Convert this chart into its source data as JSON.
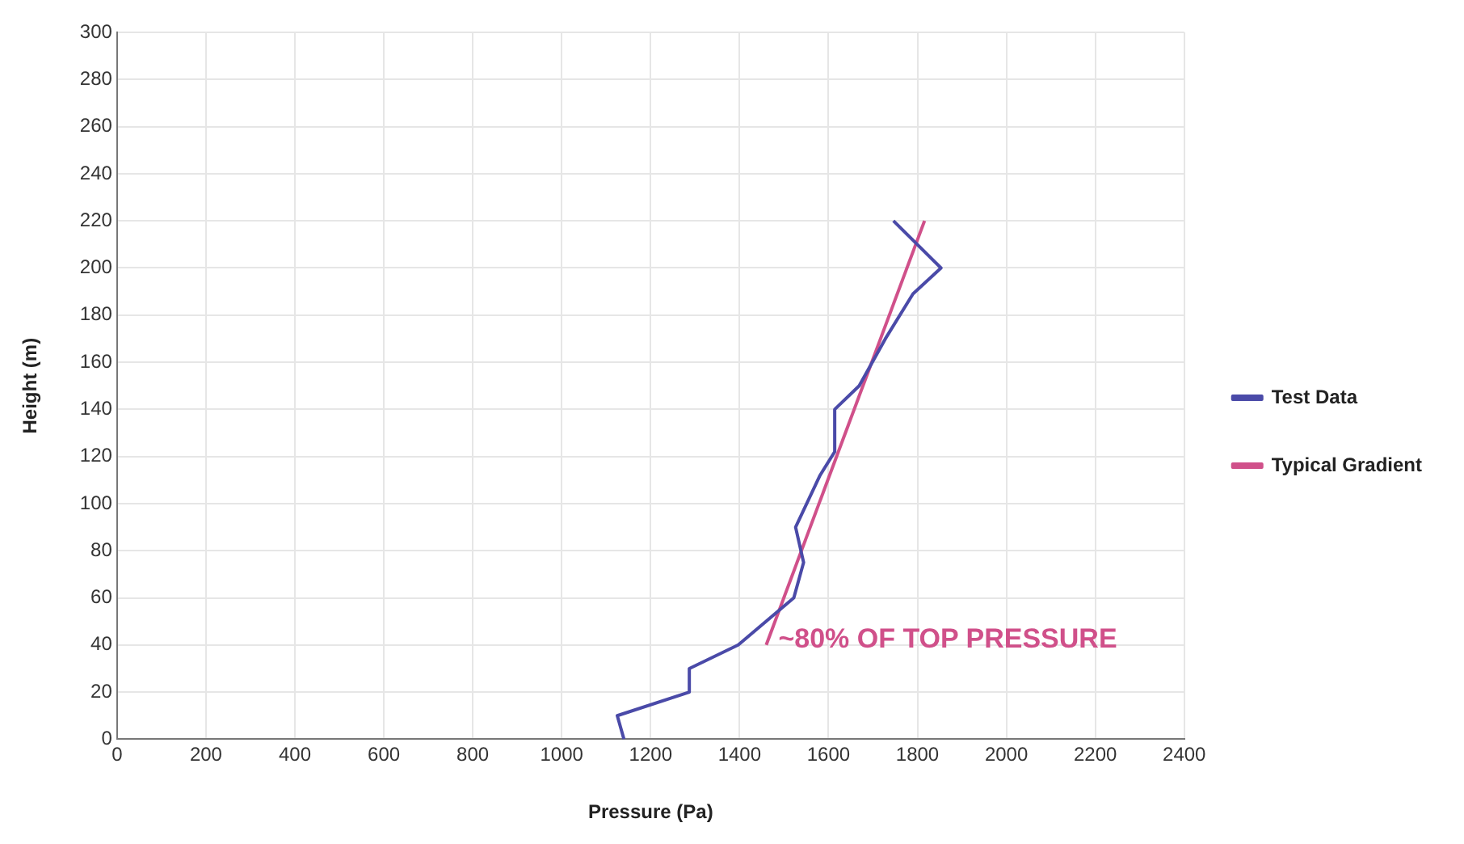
{
  "chart_data": {
    "type": "line",
    "xlabel": "Pressure (Pa)",
    "ylabel": "Height (m)",
    "xlim": [
      0,
      2400
    ],
    "ylim": [
      0,
      300
    ],
    "xticks": [
      0,
      200,
      400,
      600,
      800,
      1000,
      1200,
      1400,
      1600,
      1800,
      2000,
      2200,
      2400
    ],
    "yticks": [
      0,
      20,
      40,
      60,
      80,
      100,
      120,
      140,
      160,
      180,
      200,
      220,
      240,
      260,
      280,
      300
    ],
    "grid": true,
    "legend": "right",
    "marker": "none",
    "line_style": "solid",
    "series": [
      {
        "name": "Test Data",
        "color": "#4a4aa8",
        "x": [
          1140,
          1125,
          1287,
          1287,
          1397,
          1522,
          1544,
          1526,
          1581,
          1614,
          1614,
          1669,
          1728,
          1790,
          1853,
          1746
        ],
        "values": [
          0,
          10,
          20,
          30,
          40,
          60,
          75,
          90,
          112,
          122,
          140,
          150,
          170,
          189,
          200,
          220
        ]
      },
      {
        "name": "Typical Gradient",
        "color": "#d0508a",
        "x": [
          1460,
          1816
        ],
        "values": [
          40,
          220
        ]
      }
    ],
    "annotations": [
      {
        "text": "~80% OF TOP PRESSURE",
        "x": 1480,
        "y": 40
      }
    ]
  }
}
